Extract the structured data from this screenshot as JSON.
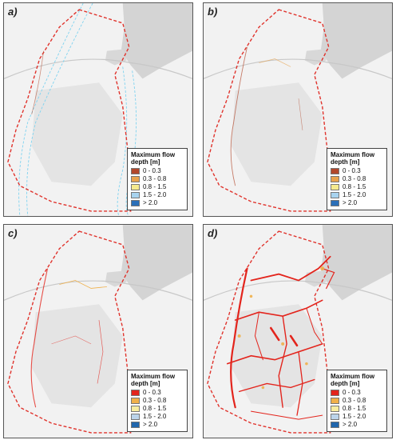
{
  "panels": [
    {
      "label": "a)",
      "palette": "a",
      "scenario_flow": "minimal"
    },
    {
      "label": "b)",
      "palette": "a",
      "scenario_flow": "low"
    },
    {
      "label": "c)",
      "palette": "c",
      "scenario_flow": "medium"
    },
    {
      "label": "d)",
      "palette": "c",
      "scenario_flow": "high"
    }
  ],
  "legend": {
    "title_line1": "Maximum flow",
    "title_line2": "depth [m]",
    "classes": [
      "0 - 0.3",
      "0.3 - 0.8",
      "0.8 - 1.5",
      "1.5 - 2.0",
      "> 2.0"
    ]
  },
  "palettes": {
    "a": [
      "#b2472b",
      "#e8a24d",
      "#f5ea8e",
      "#a8d3ef",
      "#2b6fb8"
    ],
    "c": [
      "#e3241c",
      "#f0b04a",
      "#f7eca0",
      "#bcd4ea",
      "#2166ac"
    ]
  },
  "colors": {
    "boundary": "#e0322b",
    "urban_gray": "#cfcfcf",
    "river_cyan": "#7fd3f0",
    "road": "#bdbdbd"
  }
}
